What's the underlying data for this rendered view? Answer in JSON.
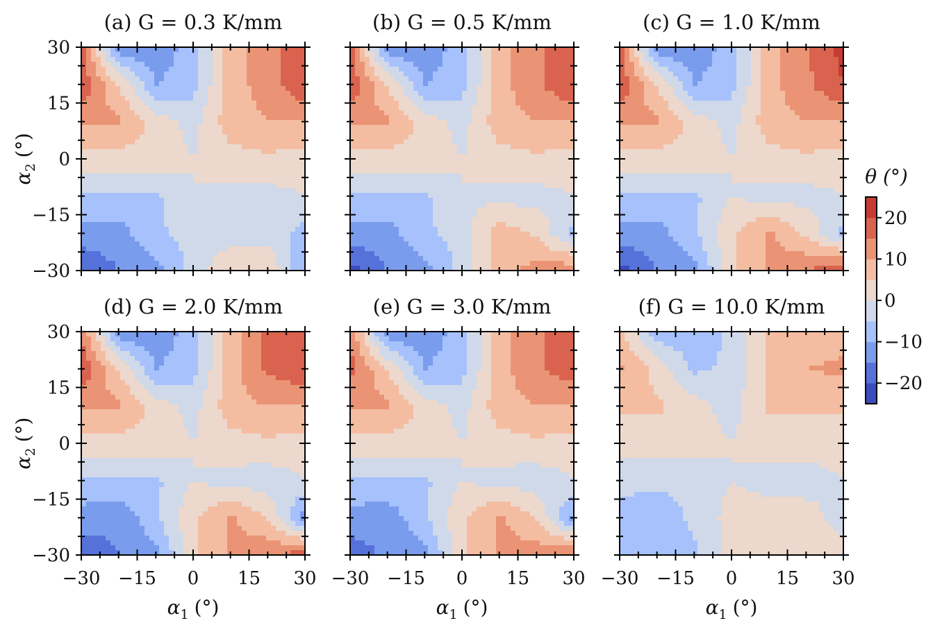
{
  "colors": {
    "levels": [
      "#3b4cc0",
      "#5672da",
      "#7a9ced",
      "#a6c1fb",
      "#cfd9e9",
      "#ecd8cd",
      "#f4bda2",
      "#ea9475",
      "#d9634e",
      "#c73b33"
    ],
    "boundaries": [
      -25,
      -20,
      -15,
      -10,
      -5,
      0,
      5,
      10,
      15,
      20,
      25
    ]
  },
  "chart_data": {
    "type": "contourf",
    "xlabel": "α1 (°)",
    "ylabel": "α2 (°)",
    "xlabel_main": "α",
    "xlabel_sub": "1",
    "xlabel_unit": "(°)",
    "ylabel_main": "α",
    "ylabel_sub": "2",
    "ylabel_unit": "(°)",
    "xlim": [
      -30,
      30
    ],
    "ylim": [
      -30,
      30
    ],
    "ticks": [
      -30,
      -15,
      0,
      15,
      30
    ],
    "tick_labels": [
      "−30",
      "−15",
      "0",
      "15",
      "30"
    ],
    "grid_alpha": [
      -30,
      -20,
      -10,
      0,
      10,
      20,
      30
    ],
    "colorbar": {
      "title": "θ (°)",
      "range": [
        -25,
        25
      ],
      "ticks": [
        20,
        10,
        0,
        -10,
        -20
      ],
      "tick_labels": [
        "20",
        "10",
        "0",
        "−10",
        "−20"
      ]
    },
    "panels": [
      {
        "title": "(a) G = 0.3 K/mm",
        "theta_rows_top_to_bottom": [
          [
            17,
            -14,
            -14,
            -7,
            8,
            12,
            20
          ],
          [
            19,
            5,
            -10,
            -7,
            8,
            12,
            20
          ],
          [
            11,
            11,
            3,
            -2,
            8,
            10,
            10
          ],
          [
            3,
            3,
            3,
            0,
            3,
            4,
            3
          ],
          [
            -6,
            -6,
            -6,
            0,
            -2,
            -2,
            0
          ],
          [
            -12,
            -12,
            -6,
            -3,
            -3,
            -2,
            -7
          ],
          [
            -20,
            -15,
            -12,
            -3,
            5,
            5,
            -10
          ]
        ]
      },
      {
        "title": "(b) G = 0.5 K/mm",
        "theta_rows_top_to_bottom": [
          [
            17,
            -14,
            -14,
            -7,
            8,
            14,
            20
          ],
          [
            19,
            5,
            -10,
            -7,
            8,
            14,
            20
          ],
          [
            11,
            11,
            3,
            -2,
            8,
            10,
            10
          ],
          [
            3,
            3,
            3,
            0,
            3,
            4,
            3
          ],
          [
            -6,
            -6,
            -6,
            0,
            -2,
            -2,
            0
          ],
          [
            -12,
            -12,
            -6,
            -3,
            8,
            4,
            -7
          ],
          [
            -22,
            -15,
            -12,
            -3,
            8,
            12,
            14
          ]
        ]
      },
      {
        "title": "(c) G = 1.0 K/mm",
        "theta_rows_top_to_bottom": [
          [
            17,
            -14,
            -14,
            -7,
            8,
            14,
            22
          ],
          [
            19,
            5,
            -10,
            -7,
            8,
            14,
            20
          ],
          [
            11,
            11,
            3,
            -2,
            8,
            10,
            10
          ],
          [
            3,
            3,
            3,
            0,
            3,
            4,
            3
          ],
          [
            -6,
            -6,
            -6,
            0,
            -2,
            -2,
            0
          ],
          [
            -12,
            -12,
            -6,
            4,
            11,
            4,
            -7
          ],
          [
            -22,
            -15,
            -12,
            4,
            11,
            15,
            20
          ]
        ]
      },
      {
        "title": "(d) G = 2.0 K/mm",
        "theta_rows_top_to_bottom": [
          [
            15,
            -14,
            -14,
            -7,
            8,
            16,
            19
          ],
          [
            19,
            5,
            -10,
            -7,
            8,
            16,
            19
          ],
          [
            11,
            11,
            3,
            -2,
            8,
            10,
            10
          ],
          [
            3,
            3,
            3,
            0,
            3,
            4,
            3
          ],
          [
            -6,
            -6,
            -6,
            0,
            -2,
            -3,
            0
          ],
          [
            -12,
            -14,
            -6,
            4,
            11,
            5,
            -13
          ],
          [
            -19,
            -15,
            -12,
            4,
            11,
            14,
            18
          ]
        ]
      },
      {
        "title": "(e) G = 3.0 K/mm",
        "theta_rows_top_to_bottom": [
          [
            14,
            -14,
            -14,
            -7,
            8,
            14,
            18
          ],
          [
            17,
            5,
            -10,
            -7,
            8,
            14,
            18
          ],
          [
            11,
            11,
            3,
            -2,
            8,
            10,
            10
          ],
          [
            3,
            3,
            3,
            0,
            3,
            4,
            3
          ],
          [
            -6,
            -6,
            -6,
            0,
            -2,
            -3,
            0
          ],
          [
            -12,
            -13,
            -6,
            4,
            11,
            5,
            -12
          ],
          [
            -18,
            -14,
            -12,
            4,
            11,
            13,
            16
          ]
        ]
      },
      {
        "title": "(f) G = 10.0 K/mm",
        "theta_rows_top_to_bottom": [
          [
            6,
            -8,
            -8,
            -4,
            6,
            7,
            8
          ],
          [
            11,
            3,
            -6,
            -4,
            6,
            10,
            11
          ],
          [
            6,
            6,
            2,
            -2,
            6,
            6,
            6
          ],
          [
            2,
            2,
            2,
            0,
            2,
            2,
            2
          ],
          [
            -4,
            -4,
            -4,
            0,
            -2,
            -2,
            0
          ],
          [
            -6,
            -8,
            -4,
            2,
            3,
            2,
            -2
          ],
          [
            -6,
            -8,
            -6,
            2,
            3,
            3,
            2
          ]
        ]
      }
    ]
  }
}
